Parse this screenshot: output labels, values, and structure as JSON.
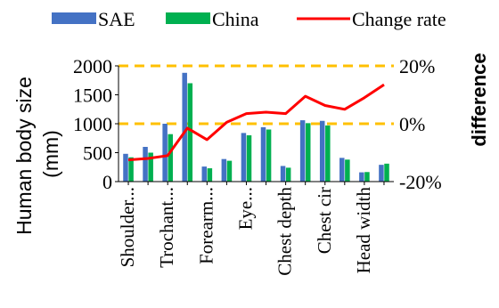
{
  "chart_data": {
    "type": "bar",
    "categories": [
      "Shoulder...",
      "",
      "Trochant...",
      "",
      "Forearm...",
      "",
      "Eye...",
      "",
      "Chest depth",
      "",
      "Chest cir",
      "",
      "Head width",
      ""
    ],
    "series": [
      {
        "name": "SAE",
        "color": "#4472C4",
        "values": [
          480,
          600,
          1000,
          1880,
          260,
          390,
          840,
          940,
          270,
          1060,
          1050,
          410,
          160,
          290
        ]
      },
      {
        "name": "China",
        "color": "#00B050",
        "values": [
          420,
          500,
          820,
          1700,
          230,
          360,
          800,
          900,
          240,
          1010,
          970,
          380,
          165,
          310
        ]
      }
    ],
    "line_series": {
      "name": "Change rate",
      "color": "#FF0000",
      "values": [
        -12.5,
        -12,
        -11,
        -1.5,
        -5.5,
        0.5,
        3.5,
        4,
        3.5,
        9.5,
        6.3,
        5,
        9,
        13.5
      ]
    },
    "ylabel": "Human body size\n(mm)",
    "ylabel_right": "difference",
    "ylim": [
      0,
      2000
    ],
    "yticks": [
      0,
      500,
      1000,
      1500,
      2000
    ],
    "ylim_right": [
      -20,
      20
    ],
    "yticks_right": [
      "-20%",
      "0%",
      "20%"
    ],
    "reference_lines": {
      "color": "#FFC000",
      "values_left": [
        1000,
        2000
      ]
    },
    "legend": {
      "position": "top",
      "entries": [
        "SAE",
        "China",
        "Change rate"
      ]
    }
  }
}
